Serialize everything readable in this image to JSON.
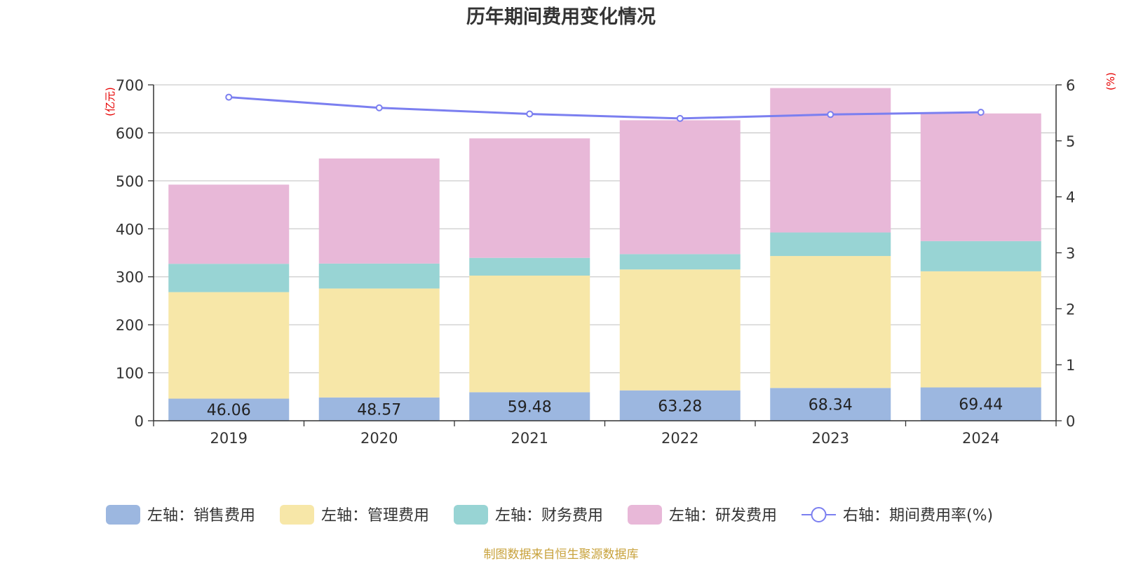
{
  "chart_data": {
    "type": "bar",
    "stacked": true,
    "title": "历年期间费用变化情况",
    "categories": [
      "2019",
      "2020",
      "2021",
      "2022",
      "2023",
      "2024"
    ],
    "y_left": {
      "unit": "(亿元)",
      "min": 0,
      "max": 700,
      "ticks": [
        0,
        100,
        200,
        300,
        400,
        500,
        600,
        700
      ]
    },
    "y_right": {
      "unit": "(%)",
      "min": 0,
      "max": 6,
      "ticks": [
        0,
        1,
        2,
        3,
        4,
        5,
        6
      ]
    },
    "series": [
      {
        "name": "左轴：销售费用",
        "type": "bar",
        "axis": "left",
        "color": "#9cb7e0",
        "values": [
          46.06,
          48.57,
          59.48,
          63.28,
          68.34,
          69.44
        ],
        "show_labels": true
      },
      {
        "name": "左轴：管理费用",
        "type": "bar",
        "axis": "left",
        "color": "#f7e7a8",
        "values": [
          222,
          227,
          243,
          252,
          275,
          242
        ]
      },
      {
        "name": "左轴：财务费用",
        "type": "bar",
        "axis": "left",
        "color": "#98d4d4",
        "values": [
          59,
          52,
          37,
          32,
          49,
          63
        ]
      },
      {
        "name": "左轴：研发费用",
        "type": "bar",
        "axis": "left",
        "color": "#e8b8d8",
        "values": [
          165,
          219,
          249,
          279,
          301,
          266
        ]
      },
      {
        "name": "右轴：期间费用率(%)",
        "type": "line",
        "axis": "right",
        "color": "#7b7ff0",
        "values": [
          5.78,
          5.59,
          5.48,
          5.4,
          5.47,
          5.51
        ]
      }
    ],
    "grid": true,
    "legend_position": "bottom"
  },
  "source": "制图数据来自恒生聚源数据库"
}
